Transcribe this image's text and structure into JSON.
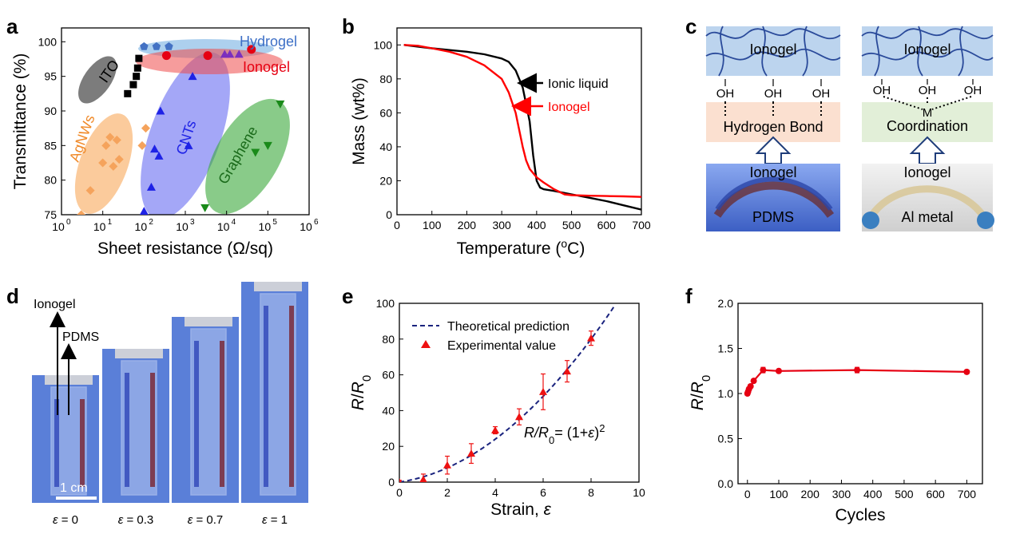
{
  "panels": {
    "a": {
      "letter": "a"
    },
    "b": {
      "letter": "b"
    },
    "c": {
      "letter": "c"
    },
    "d": {
      "letter": "d"
    },
    "e": {
      "letter": "e"
    },
    "f": {
      "letter": "f"
    }
  },
  "chart_data": [
    {
      "id": "a",
      "type": "scatter",
      "xlabel": "Sheet resistance (Ω/sq)",
      "ylabel": "Transmittance (%)",
      "x_scale": "log",
      "xlim": [
        1,
        1000000
      ],
      "ylim": [
        75,
        102
      ],
      "x_tick_labels": [
        "10",
        "0",
        "10",
        "1",
        "10",
        "2",
        "10",
        "3",
        "10",
        "4",
        "10",
        "5",
        "10",
        "6"
      ],
      "y_ticks": [
        75,
        80,
        85,
        90,
        95,
        100
      ],
      "series": [
        {
          "name": "ITO",
          "color": "#000000",
          "marker": "square",
          "points": [
            [
              40,
              92.5
            ],
            [
              55,
              93.8
            ],
            [
              65,
              95
            ],
            [
              70,
              96.2
            ],
            [
              75,
              97.6
            ]
          ]
        },
        {
          "name": "AgNWs",
          "color": "#f5a35c",
          "marker": "diamond",
          "points": [
            [
              3,
              75
            ],
            [
              5,
              78.5
            ],
            [
              10,
              82.5
            ],
            [
              12,
              85
            ],
            [
              15,
              86.2
            ],
            [
              18,
              82
            ],
            [
              22,
              85.8
            ],
            [
              25,
              83
            ],
            [
              90,
              85
            ],
            [
              110,
              87.5
            ]
          ]
        },
        {
          "name": "CNTs",
          "color": "#1e22e6",
          "marker": "triangle",
          "points": [
            [
              100,
              75.5
            ],
            [
              150,
              79
            ],
            [
              180,
              84.5
            ],
            [
              250,
              90
            ],
            [
              230,
              83.5
            ],
            [
              1200,
              85
            ],
            [
              1500,
              95
            ]
          ]
        },
        {
          "name": "Graphene",
          "color": "#1a8a1a",
          "marker": "triangle-down",
          "points": [
            [
              3000,
              76
            ],
            [
              50000,
              84
            ],
            [
              100000,
              85
            ],
            [
              200000,
              91
            ]
          ]
        },
        {
          "name": "Hydrogel",
          "color": "#4472c4",
          "marker": "pentagon",
          "points": [
            [
              100,
              99.3
            ],
            [
              200,
              99.3
            ],
            [
              400,
              99.3
            ]
          ]
        },
        {
          "name": "Ionogel",
          "color": "#e60012",
          "marker": "circle",
          "points": [
            [
              350,
              98
            ],
            [
              3500,
              98
            ],
            [
              40000,
              98.9
            ]
          ]
        },
        {
          "name": "",
          "color": "#7b2fbe",
          "marker": "triangle",
          "points": [
            [
              9000,
              98.2
            ],
            [
              12000,
              98.2
            ],
            [
              20000,
              98.2
            ]
          ]
        }
      ],
      "annotations": [
        "Hydrogel",
        "Ionogel",
        "ITO",
        "AgNWs",
        "CNTs",
        "Graphene"
      ]
    },
    {
      "id": "b",
      "type": "line",
      "xlabel": "Temperature (oC)",
      "ylabel": "Mass (wt%)",
      "xlim": [
        0,
        700
      ],
      "ylim": [
        0,
        110
      ],
      "x_ticks": [
        0,
        100,
        200,
        300,
        400,
        500,
        600,
        700
      ],
      "y_ticks": [
        0,
        20,
        40,
        60,
        80,
        100
      ],
      "series": [
        {
          "name": "Ionic liquid",
          "color": "#000000",
          "x": [
            20,
            60,
            100,
            150,
            200,
            250,
            300,
            320,
            340,
            360,
            380,
            390,
            400,
            410,
            420,
            450,
            500,
            550,
            600,
            650,
            700
          ],
          "y": [
            100,
            99,
            98,
            97,
            96,
            94.5,
            92,
            90,
            85,
            75,
            55,
            35,
            20,
            16,
            15,
            14,
            12,
            10,
            8,
            5.5,
            3
          ]
        },
        {
          "name": "Ionogel",
          "color": "#ff0000",
          "x": [
            20,
            60,
            100,
            150,
            200,
            250,
            300,
            320,
            340,
            350,
            360,
            370,
            380,
            400,
            420,
            450,
            480,
            500,
            550,
            600,
            650,
            700
          ],
          "y": [
            100,
            99.5,
            98,
            96,
            93,
            88,
            80,
            72,
            60,
            50,
            40,
            32,
            27,
            22,
            19,
            15,
            12,
            11.5,
            11.2,
            11,
            10.8,
            10.5
          ]
        }
      ],
      "legend_labels": [
        "Ionic liquid",
        "Ionogel"
      ]
    },
    {
      "id": "e",
      "type": "scatter",
      "xlabel": "Strain, ε",
      "ylabel": "R/R0",
      "xlim": [
        0,
        10
      ],
      "ylim": [
        0,
        100
      ],
      "x_ticks": [
        0,
        2,
        4,
        6,
        8,
        10
      ],
      "y_ticks": [
        0,
        20,
        40,
        60,
        80,
        100
      ],
      "series": [
        {
          "name": "Theoretical prediction",
          "color": "#1a237e",
          "style": "dashed",
          "formula": "(1+x)^2"
        },
        {
          "name": "Experimental value",
          "color": "#ee1111",
          "marker": "triangle",
          "x": [
            0,
            1,
            2,
            3,
            4,
            5,
            6,
            7,
            8
          ],
          "y": [
            0,
            1.5,
            9.5,
            16,
            29,
            36.5,
            50.5,
            62,
            80.5
          ],
          "err": [
            1,
            3,
            5,
            5.5,
            2,
            4.5,
            10,
            6,
            4
          ]
        }
      ],
      "equation": {
        "lhs": "R/R",
        "sub": "0",
        "rhs": "= (1+",
        "eps": "ε",
        "close": ")",
        "sup": "2"
      }
    },
    {
      "id": "f",
      "type": "line",
      "xlabel": "Cycles",
      "ylabel": "R/R0",
      "xlim": [
        -30,
        750
      ],
      "ylim": [
        0,
        2
      ],
      "x_ticks": [
        0,
        100,
        200,
        300,
        400,
        500,
        600,
        700
      ],
      "y_ticks": [
        "0.0",
        "0.5",
        "1.0",
        "1.5",
        "2.0"
      ],
      "series": [
        {
          "name": "",
          "color": "#e60012",
          "x": [
            0,
            2,
            5,
            10,
            20,
            50,
            100,
            350,
            700
          ],
          "y": [
            1.0,
            1.02,
            1.05,
            1.08,
            1.14,
            1.26,
            1.25,
            1.26,
            1.24
          ],
          "err": [
            0.02,
            0.02,
            0.02,
            0.02,
            0.02,
            0.03,
            0.015,
            0.03,
            0.02
          ]
        }
      ]
    }
  ],
  "panel_c": {
    "left": {
      "top_label": "Ionogel",
      "oh": [
        "OH",
        "OH",
        "OH"
      ],
      "bond_label": "Hydrogen Bond",
      "photo_top": "Ionogel",
      "photo_bottom": "PDMS"
    },
    "right": {
      "top_label": "Ionogel",
      "oh": [
        "OH",
        "OH",
        "OH"
      ],
      "metal": "M",
      "bond_label": "Coordination",
      "photo_top": "Ionogel",
      "photo_bottom": "Al metal"
    }
  },
  "panel_d": {
    "label_top": "Ionogel",
    "label_second": "PDMS",
    "scale_bar": "1 cm",
    "captions": [
      {
        "eps": "ε",
        "value": " = 0"
      },
      {
        "eps": "ε",
        "value": " = 0.3"
      },
      {
        "eps": "ε",
        "value": " = 0.7"
      },
      {
        "eps": "ε",
        "value": " = 1"
      }
    ]
  },
  "colors": {
    "ionogel_blue": "#bcd4ee",
    "hbond_box": "#fbe0d0",
    "coord_box": "#e2efd8",
    "photo_blue": "#5a7fd8"
  }
}
